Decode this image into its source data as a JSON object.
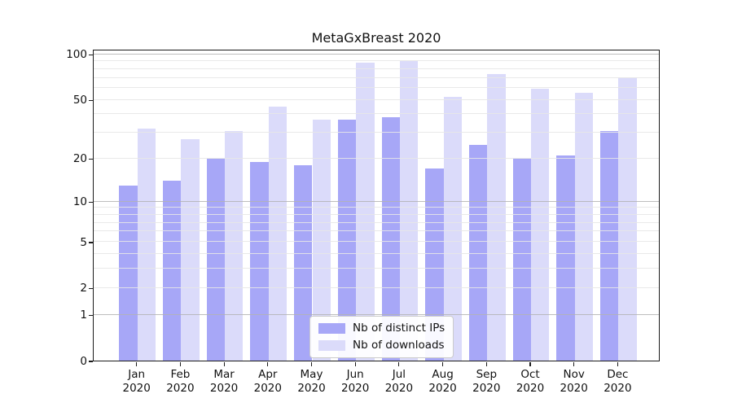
{
  "figure": {
    "background": "#ffffff"
  },
  "chart_data": {
    "type": "bar",
    "title": "MetaGxBreast 2020",
    "categories": [
      "Jan 2020",
      "Feb 2020",
      "Mar 2020",
      "Apr 2020",
      "May 2020",
      "Jun 2020",
      "Jul 2020",
      "Aug 2020",
      "Sep 2020",
      "Oct 2020",
      "Nov 2020",
      "Dec 2020"
    ],
    "month_labels": [
      "Jan",
      "Feb",
      "Mar",
      "Apr",
      "May",
      "Jun",
      "Jul",
      "Aug",
      "Sep",
      "Oct",
      "Nov",
      "Dec"
    ],
    "year_label": "2020",
    "series": [
      {
        "name": "Nb of distinct IPs",
        "color": "#a7a7f7",
        "values": [
          13,
          14,
          20,
          19,
          18,
          37,
          38,
          17,
          25,
          20,
          21,
          31
        ]
      },
      {
        "name": "Nb of downloads",
        "color": "#dbdbfa",
        "values": [
          32,
          27,
          31,
          45,
          37,
          88,
          90,
          52,
          74,
          59,
          56,
          71
        ]
      }
    ],
    "yscale": "log1p",
    "ylim": [
      0,
      109
    ],
    "y_labeled_ticks": [
      0,
      1,
      2,
      5,
      10,
      20,
      50,
      100
    ],
    "y_decade_gridlines": [
      1,
      10,
      100
    ],
    "y_minor_gridlines": [
      2,
      3,
      4,
      5,
      6,
      7,
      8,
      9,
      20,
      30,
      40,
      50,
      60,
      70,
      80,
      90
    ],
    "grid": true,
    "legend_position": "lower center",
    "colors": {
      "grid_major": "#b3b3b3",
      "grid_minor": "#e7e7e7",
      "spine": "#1a1a1a",
      "text": "#111111"
    }
  }
}
